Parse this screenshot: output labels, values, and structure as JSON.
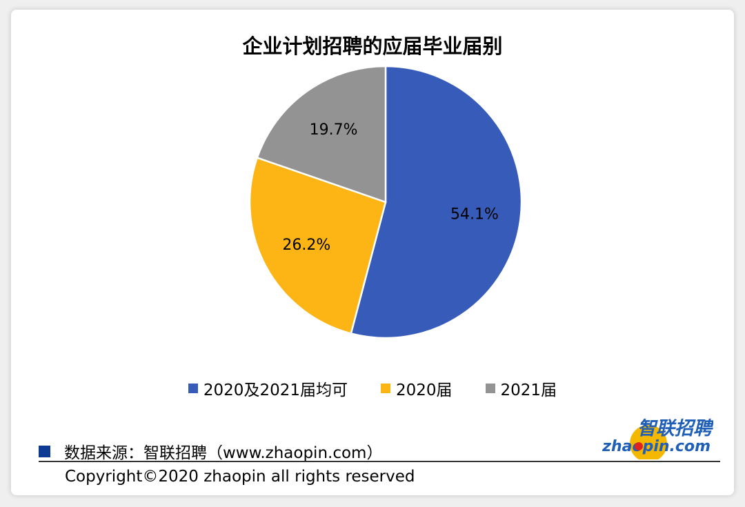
{
  "title": "企业计划招聘的应届毕业届别",
  "chart_data": {
    "type": "pie",
    "title": "企业计划招聘的应届毕业届别",
    "slices": [
      {
        "label": "2020及2021届均可",
        "value": 54.1,
        "display": "54.1%",
        "color": "#375BB9"
      },
      {
        "label": "2020届",
        "value": 26.2,
        "display": "26.2%",
        "color": "#FDB515"
      },
      {
        "label": "2021届",
        "value": 19.7,
        "display": "19.7%",
        "color": "#939393"
      }
    ],
    "legend_placement": "bottom"
  },
  "source": {
    "text": "数据来源：智联招聘（www.zhaopin.com）",
    "square_color": "#0D3B94"
  },
  "copyright": "Copyright©2020 zhaopin all rights reserved",
  "logo": {
    "cn_text": "智联招聘",
    "en_text": "zhaopin.com",
    "blue": "#1F5FB8",
    "yellow": "#F5B800",
    "red": "#E0231E"
  }
}
